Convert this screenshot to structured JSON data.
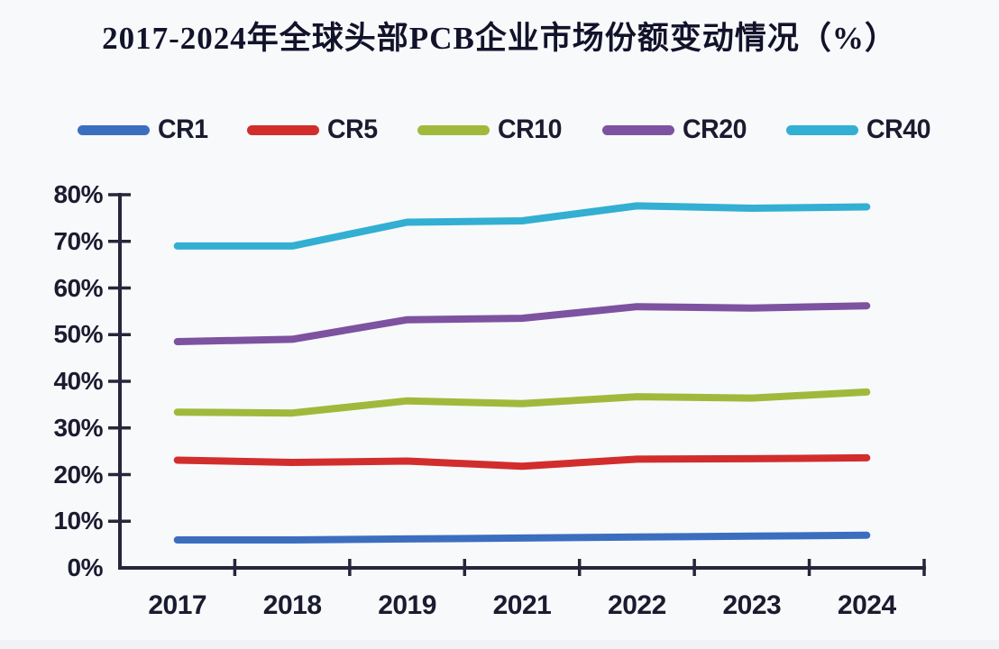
{
  "title": "2017-2024年全球头部PCB企业市场份额变动情况（%）",
  "colors": {
    "background": "#f8f9fb",
    "axis": "#26263a",
    "text": "#1b1b30",
    "title_text": "#12122a"
  },
  "chart_data": {
    "type": "line",
    "title": "2017-2024年全球头部PCB企业市场份额变动情况（%）",
    "xlabel": "",
    "ylabel": "",
    "categories": [
      "2017",
      "2018",
      "2019",
      "2021",
      "2022",
      "2023",
      "2024"
    ],
    "series": [
      {
        "name": "CR1",
        "color": "#3c6ec0",
        "values": [
          6.0,
          6.0,
          6.2,
          6.4,
          6.6,
          6.8,
          7.0
        ]
      },
      {
        "name": "CR5",
        "color": "#d22d2d",
        "values": [
          23.1,
          22.6,
          22.9,
          21.8,
          23.3,
          23.4,
          23.6
        ]
      },
      {
        "name": "CR10",
        "color": "#a0b93c",
        "values": [
          33.4,
          33.2,
          35.8,
          35.2,
          36.7,
          36.4,
          37.7
        ]
      },
      {
        "name": "CR20",
        "color": "#7d52a0",
        "values": [
          48.5,
          49.0,
          53.2,
          53.5,
          56.0,
          55.7,
          56.2
        ]
      },
      {
        "name": "CR40",
        "color": "#32afd2",
        "values": [
          69.0,
          69.0,
          74.1,
          74.4,
          77.6,
          77.1,
          77.4
        ]
      }
    ],
    "y_ticks": [
      "0%",
      "10%",
      "20%",
      "30%",
      "40%",
      "50%",
      "60%",
      "70%",
      "80%"
    ],
    "ylim": [
      0,
      80
    ],
    "y_tick_step": 10,
    "grid": false,
    "legend_position": "top"
  }
}
